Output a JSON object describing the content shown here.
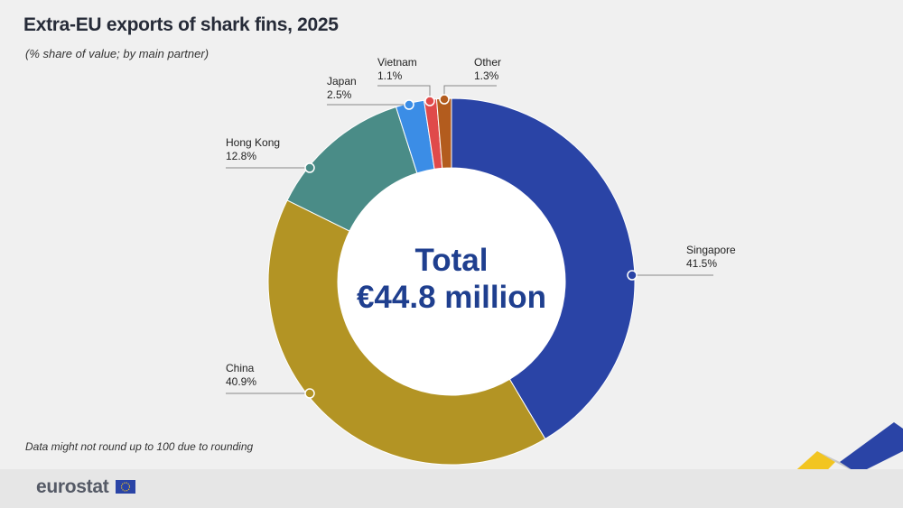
{
  "header": {
    "title": "Extra-EU exports of shark fins, 2025",
    "subtitle": "(% share of value; by main partner)"
  },
  "footnote": "Data might not round up to 100 due to rounding",
  "footer": {
    "logo": "eurostat"
  },
  "chart_data": {
    "type": "pie",
    "donut": true,
    "center_label": [
      "Total",
      "€44.8 million"
    ],
    "categories": [
      "Singapore",
      "China",
      "Hong Kong",
      "Japan",
      "Vietnam",
      "Other"
    ],
    "values": [
      41.5,
      40.9,
      12.8,
      2.5,
      1.1,
      1.3
    ],
    "value_labels": [
      "41.5%",
      "40.9%",
      "12.8%",
      "2.5%",
      "1.1%",
      "1.3%"
    ],
    "colors": [
      "#2a44a6",
      "#b39424",
      "#4a8c87",
      "#3b8de6",
      "#e04a4a",
      "#b35c1e"
    ]
  }
}
